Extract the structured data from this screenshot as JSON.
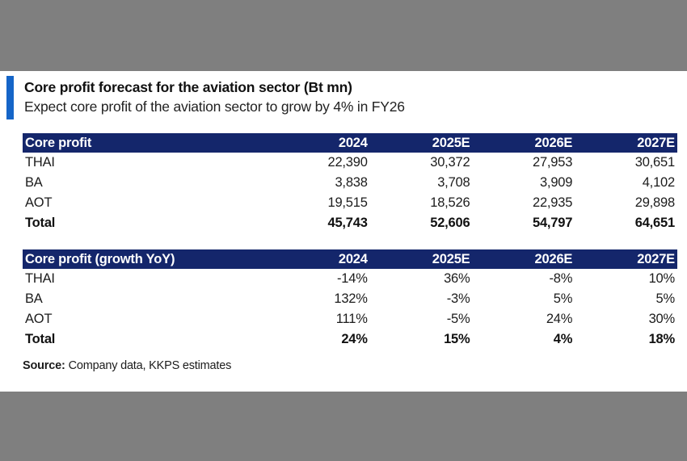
{
  "page": {
    "title": "Core profit forecast for the aviation sector (Bt mn)",
    "subtitle": "Expect core profit of the aviation sector to grow by 4% in FY26",
    "source_label": "Source:",
    "source_text": "Company data, KKPS estimates"
  },
  "colors": {
    "header_navy": "#14266b",
    "accent_blue": "#1565c8",
    "band_gray": "#7f7f7f"
  },
  "tables": [
    {
      "title": "Core profit",
      "columns": [
        "2024",
        "2025E",
        "2026E",
        "2027E"
      ],
      "rows": [
        {
          "label": "THAI",
          "values": [
            "22,390",
            "30,372",
            "27,953",
            "30,651"
          ]
        },
        {
          "label": "BA",
          "values": [
            "3,838",
            "3,708",
            "3,909",
            "4,102"
          ]
        },
        {
          "label": "AOT",
          "values": [
            "19,515",
            "18,526",
            "22,935",
            "29,898"
          ]
        },
        {
          "label": "Total",
          "values": [
            "45,743",
            "52,606",
            "54,797",
            "64,651"
          ]
        }
      ]
    },
    {
      "title": "Core profit (growth YoY)",
      "columns": [
        "2024",
        "2025E",
        "2026E",
        "2027E"
      ],
      "rows": [
        {
          "label": "THAI",
          "values": [
            "-14%",
            "36%",
            "-8%",
            "10%"
          ]
        },
        {
          "label": "BA",
          "values": [
            "132%",
            "-3%",
            "5%",
            "5%"
          ]
        },
        {
          "label": "AOT",
          "values": [
            "111%",
            "-5%",
            "24%",
            "30%"
          ]
        },
        {
          "label": "Total",
          "values": [
            "24%",
            "15%",
            "4%",
            "18%"
          ]
        }
      ]
    }
  ]
}
